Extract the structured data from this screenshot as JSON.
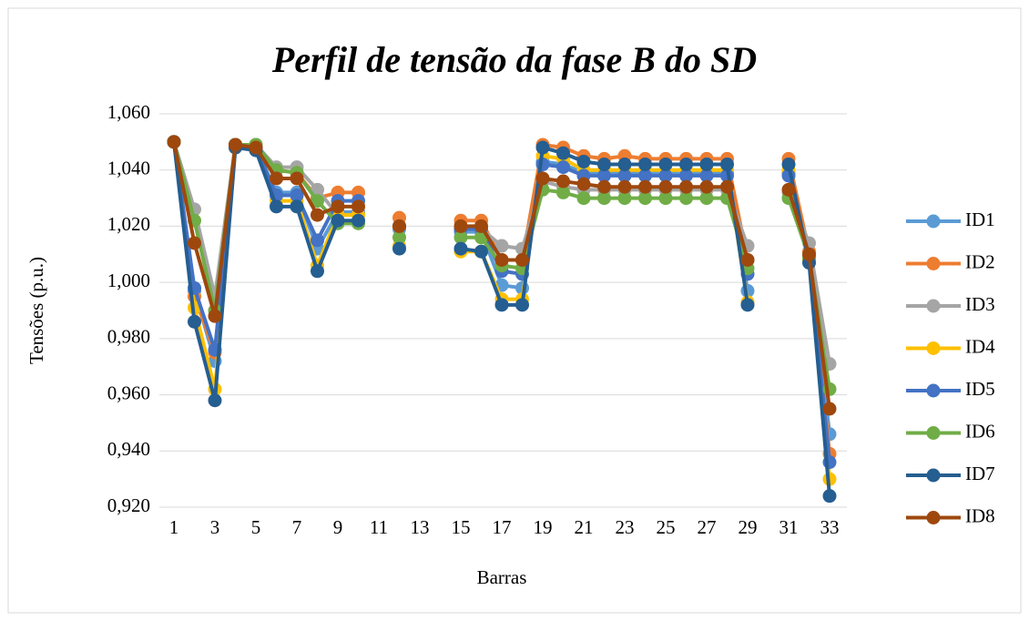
{
  "chart_data": {
    "type": "line",
    "title": "Perfil de tensão da fase B do SD",
    "x_label": "Barras",
    "y_label": "Tensões (p.u.)",
    "categories": [
      "1",
      null,
      "3",
      null,
      "5",
      null,
      "7",
      null,
      "9",
      null,
      "11",
      null,
      "13",
      null,
      "15",
      null,
      "17",
      null,
      "19",
      null,
      "21",
      null,
      "23",
      null,
      "25",
      null,
      "27",
      null,
      "29",
      null,
      "31",
      null,
      "33"
    ],
    "ylim": [
      0.92,
      1.06
    ],
    "yticks": [
      {
        "value": 0.92,
        "label": "0,920"
      },
      {
        "value": 0.94,
        "label": "0,940"
      },
      {
        "value": 0.96,
        "label": "0,960"
      },
      {
        "value": 0.98,
        "label": "0,980"
      },
      {
        "value": 1.0,
        "label": "1,000"
      },
      {
        "value": 1.02,
        "label": "1,020"
      },
      {
        "value": 1.04,
        "label": "1,040"
      },
      {
        "value": 1.06,
        "label": "1,060"
      }
    ],
    "grid": true,
    "legend": "right",
    "series": [
      {
        "name": "ID1",
        "color": "#5b9bd5",
        "values": [
          1.05,
          0.997,
          0.972,
          1.049,
          1.048,
          1.032,
          1.032,
          1.012,
          1.025,
          1.025,
          null,
          1.019,
          null,
          null,
          1.018,
          1.018,
          0.999,
          0.998,
          1.043,
          1.042,
          1.039,
          1.039,
          1.039,
          1.039,
          1.039,
          1.039,
          1.039,
          1.039,
          0.997,
          null,
          1.039,
          1.009,
          0.946
        ]
      },
      {
        "name": "ID2",
        "color": "#ed7d31",
        "values": [
          1.05,
          0.995,
          0.975,
          1.049,
          1.049,
          1.04,
          1.039,
          1.03,
          1.032,
          1.032,
          null,
          1.023,
          null,
          null,
          1.022,
          1.022,
          1.008,
          1.008,
          1.049,
          1.048,
          1.045,
          1.044,
          1.045,
          1.044,
          1.044,
          1.044,
          1.044,
          1.044,
          1.008,
          null,
          1.044,
          1.011,
          0.939
        ]
      },
      {
        "name": "ID3",
        "color": "#a5a5a5",
        "values": [
          1.05,
          1.026,
          0.995,
          1.049,
          1.049,
          1.041,
          1.041,
          1.033,
          1.024,
          1.024,
          null,
          1.02,
          null,
          null,
          1.019,
          1.019,
          1.013,
          1.012,
          1.036,
          1.034,
          1.033,
          1.033,
          1.033,
          1.033,
          1.033,
          1.033,
          1.033,
          1.033,
          1.013,
          null,
          1.032,
          1.014,
          0.971
        ]
      },
      {
        "name": "ID4",
        "color": "#ffc000",
        "values": [
          1.05,
          0.991,
          0.962,
          1.048,
          1.048,
          1.029,
          1.029,
          1.006,
          1.024,
          1.024,
          null,
          1.013,
          null,
          null,
          1.011,
          1.011,
          0.994,
          0.994,
          1.045,
          1.044,
          1.04,
          1.04,
          1.04,
          1.04,
          1.04,
          1.04,
          1.04,
          1.04,
          0.993,
          null,
          1.04,
          1.008,
          0.93
        ]
      },
      {
        "name": "ID5",
        "color": "#4472c4",
        "values": [
          1.05,
          0.998,
          0.976,
          1.049,
          1.048,
          1.031,
          1.031,
          1.015,
          1.029,
          1.029,
          null,
          1.02,
          null,
          null,
          1.019,
          1.019,
          1.004,
          1.003,
          1.042,
          1.041,
          1.038,
          1.038,
          1.038,
          1.038,
          1.038,
          1.038,
          1.038,
          1.038,
          1.003,
          null,
          1.038,
          1.009,
          0.936
        ]
      },
      {
        "name": "ID6",
        "color": "#70ad47",
        "values": [
          1.05,
          1.022,
          0.99,
          1.049,
          1.049,
          1.04,
          1.039,
          1.029,
          1.021,
          1.021,
          null,
          1.016,
          null,
          null,
          1.016,
          1.016,
          1.006,
          1.005,
          1.033,
          1.032,
          1.03,
          1.03,
          1.03,
          1.03,
          1.03,
          1.03,
          1.03,
          1.03,
          1.005,
          null,
          1.03,
          1.009,
          0.962
        ]
      },
      {
        "name": "ID7",
        "color": "#255e91",
        "values": [
          1.05,
          0.986,
          0.958,
          1.048,
          1.047,
          1.027,
          1.027,
          1.004,
          1.022,
          1.022,
          null,
          1.012,
          null,
          null,
          1.012,
          1.011,
          0.992,
          0.992,
          1.048,
          1.046,
          1.043,
          1.042,
          1.042,
          1.042,
          1.042,
          1.042,
          1.042,
          1.042,
          0.992,
          null,
          1.042,
          1.007,
          0.924
        ]
      },
      {
        "name": "ID8",
        "color": "#9e480e",
        "values": [
          1.05,
          1.014,
          0.988,
          1.049,
          1.048,
          1.037,
          1.037,
          1.024,
          1.027,
          1.027,
          null,
          1.02,
          null,
          null,
          1.02,
          1.02,
          1.008,
          1.008,
          1.037,
          1.036,
          1.035,
          1.034,
          1.034,
          1.034,
          1.034,
          1.034,
          1.034,
          1.034,
          1.008,
          null,
          1.033,
          1.01,
          0.955
        ]
      }
    ]
  }
}
